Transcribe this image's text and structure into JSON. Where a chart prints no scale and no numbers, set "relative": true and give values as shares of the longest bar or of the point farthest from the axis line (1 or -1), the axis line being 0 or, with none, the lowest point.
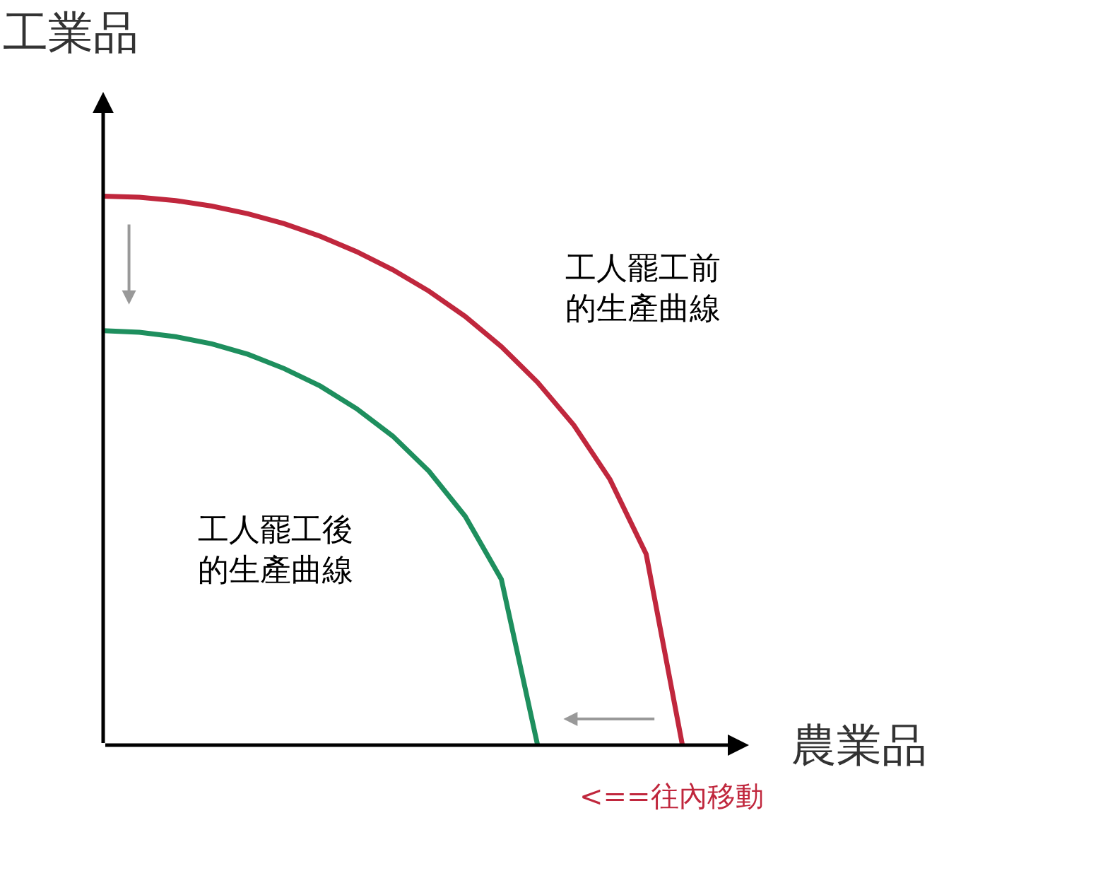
{
  "chart_data": {
    "type": "line",
    "relative": true,
    "xlabel": "農業品",
    "ylabel": "工業品",
    "categories": [
      null,
      null,
      null,
      null,
      null,
      null,
      null,
      null,
      null,
      null,
      null,
      null,
      null,
      null,
      null,
      null,
      null
    ],
    "series": [
      {
        "color": "#c0273d",
        "values": [
          1,
          0.998,
          0.992,
          0.982,
          0.968,
          0.95,
          0.927,
          0.899,
          0.866,
          0.827,
          0.781,
          0.726,
          0.661,
          0.583,
          0.484,
          0.348,
          0
        ]
      },
      {
        "color": "#1e8f5e",
        "values": [
          0.755,
          0.752,
          0.744,
          0.731,
          0.712,
          0.686,
          0.654,
          0.613,
          0.563,
          0.499,
          0.417,
          0.302,
          0,
          null,
          null,
          null,
          null
        ]
      }
    ],
    "annotations": [
      "工人罷工前的生產曲線",
      "工人罷工後的生產曲線",
      "<==往內移動"
    ]
  }
}
